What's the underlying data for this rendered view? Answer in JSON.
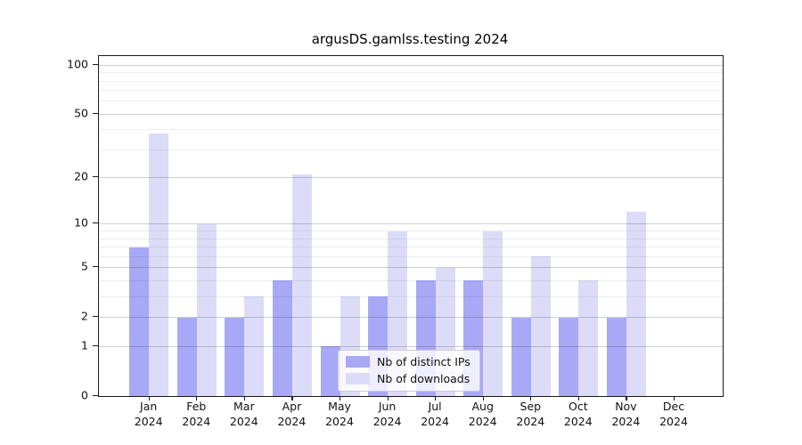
{
  "title": "argusDS.gamlss.testing 2024",
  "chart_data": {
    "type": "bar",
    "title": "argusDS.gamlss.testing 2024",
    "xlabel": "",
    "ylabel": "",
    "categories": [
      "Jan",
      "Feb",
      "Mar",
      "Apr",
      "May",
      "Jun",
      "Jul",
      "Aug",
      "Sep",
      "Oct",
      "Nov",
      "Dec"
    ],
    "year_label": "2024",
    "series": [
      {
        "name": "Nb of distinct IPs",
        "color": "#a8a8f7",
        "values": [
          7,
          2,
          2,
          4,
          1,
          3,
          4,
          4,
          2,
          2,
          2,
          0
        ]
      },
      {
        "name": "Nb of downloads",
        "color": "#dcdcf8",
        "values": [
          38,
          10,
          3,
          21,
          3,
          9,
          5,
          9,
          6,
          4,
          12,
          0
        ]
      }
    ],
    "yscale": "log1p",
    "y_tick_values": [
      0,
      1,
      2,
      5,
      10,
      20,
      50,
      100
    ],
    "y_tick_labels": [
      "0",
      "1",
      "2",
      "5",
      "10",
      "20",
      "50",
      "100"
    ],
    "y_minor_gridlines": [
      3,
      4,
      6,
      7,
      8,
      9,
      30,
      40,
      60,
      70,
      80,
      90
    ],
    "ylim": [
      0,
      110
    ],
    "grid": true,
    "legend_position": "inside-bottom-center"
  }
}
